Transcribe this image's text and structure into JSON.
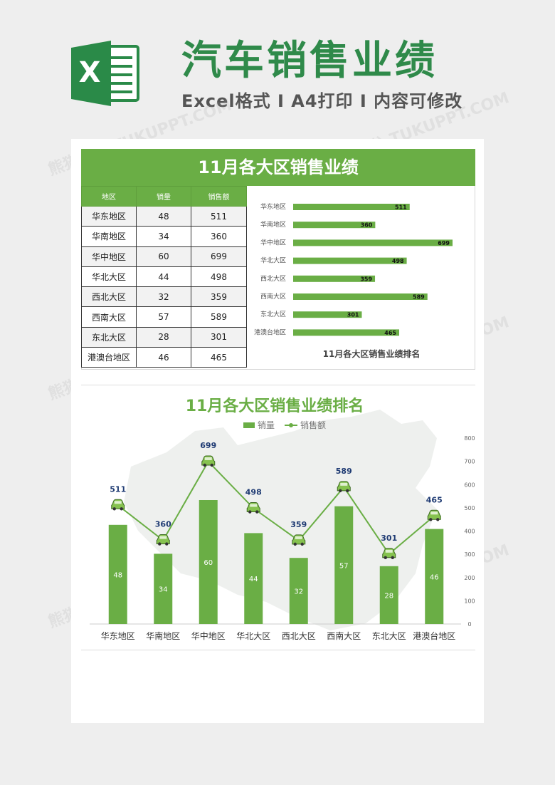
{
  "header": {
    "title": "汽车销售业绩",
    "subtitle": "Excel格式 I A4打印 I 内容可修改",
    "logo_letter": "X"
  },
  "table": {
    "title": "11月各大区销售业绩",
    "columns": [
      "地区",
      "销量",
      "销售额"
    ],
    "rows": [
      [
        "华东地区",
        "48",
        "511"
      ],
      [
        "华南地区",
        "34",
        "360"
      ],
      [
        "华中地区",
        "60",
        "699"
      ],
      [
        "华北大区",
        "44",
        "498"
      ],
      [
        "西北大区",
        "32",
        "359"
      ],
      [
        "西南大区",
        "57",
        "589"
      ],
      [
        "东北大区",
        "28",
        "301"
      ],
      [
        "港澳台地区",
        "46",
        "465"
      ]
    ]
  },
  "watermark": "熊猫办公 TUKUPPT.COM",
  "colors": {
    "accent": "#6aae45",
    "brand": "#2f8a4a",
    "label_navy": "#1f3b73"
  },
  "chart_data": [
    {
      "type": "bar",
      "orientation": "horizontal",
      "title": "11月各大区销售业绩排名",
      "categories": [
        "华东地区",
        "华南地区",
        "华中地区",
        "华北大区",
        "西北大区",
        "西南大区",
        "东北大区",
        "港澳台地区"
      ],
      "values": [
        511,
        360,
        699,
        498,
        359,
        589,
        301,
        465
      ],
      "data_labels": true
    },
    {
      "type": "bar",
      "combo": "bar+line",
      "title": "11月各大区销售业绩排名",
      "categories": [
        "华东地区",
        "华南地区",
        "华中地区",
        "华北大区",
        "西北大区",
        "西南大区",
        "东北大区",
        "港澳台地区"
      ],
      "series": [
        {
          "name": "销量",
          "type": "bar",
          "values": [
            48,
            34,
            60,
            44,
            32,
            57,
            28,
            46
          ]
        },
        {
          "name": "销售额",
          "type": "line",
          "marker": "car-icon",
          "values": [
            511,
            360,
            699,
            498,
            359,
            589,
            301,
            465
          ]
        }
      ],
      "ylim_right": [
        0,
        800
      ],
      "yticks_right": [
        "800",
        "700",
        "600",
        "500",
        "400",
        "300",
        "200",
        "100",
        "0"
      ],
      "ylim_bar": [
        0,
        90
      ],
      "legend": "top-center",
      "grid": false
    }
  ]
}
